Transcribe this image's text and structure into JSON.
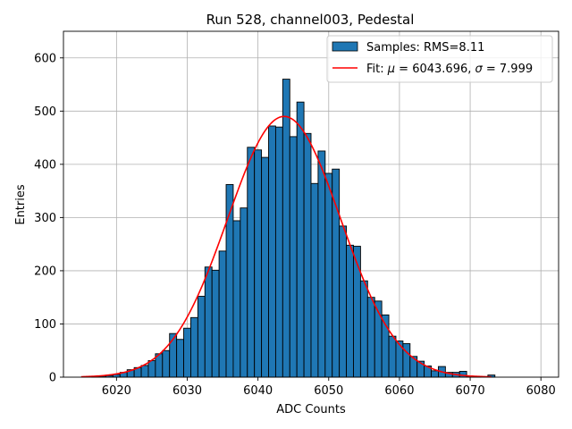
{
  "chart_data": {
    "type": "bar",
    "title": "Run 528, channel003, Pedestal",
    "xlabel": "ADC Counts",
    "ylabel": "Entries",
    "xlim": [
      6012.5,
      6082.5
    ],
    "ylim": [
      0,
      650
    ],
    "grid": true,
    "legend_position": "top-right",
    "xticks": [
      6020,
      6030,
      6040,
      6050,
      6060,
      6070,
      6080
    ],
    "yticks": [
      0,
      100,
      200,
      300,
      400,
      500,
      600
    ],
    "bin_width": 1,
    "bar_color": "#1f77b4",
    "fit_color": "#ff0000",
    "histogram": {
      "name": "Samples: RMS=8.11",
      "bins": [
        {
          "x": 6017,
          "y": 1
        },
        {
          "x": 6018,
          "y": 2
        },
        {
          "x": 6019,
          "y": 3
        },
        {
          "x": 6020,
          "y": 5
        },
        {
          "x": 6021,
          "y": 9
        },
        {
          "x": 6022,
          "y": 14
        },
        {
          "x": 6023,
          "y": 18
        },
        {
          "x": 6024,
          "y": 22
        },
        {
          "x": 6025,
          "y": 31
        },
        {
          "x": 6026,
          "y": 44
        },
        {
          "x": 6027,
          "y": 50
        },
        {
          "x": 6028,
          "y": 82
        },
        {
          "x": 6029,
          "y": 71
        },
        {
          "x": 6030,
          "y": 92
        },
        {
          "x": 6031,
          "y": 112
        },
        {
          "x": 6032,
          "y": 152
        },
        {
          "x": 6033,
          "y": 207
        },
        {
          "x": 6034,
          "y": 201
        },
        {
          "x": 6035,
          "y": 237
        },
        {
          "x": 6036,
          "y": 362
        },
        {
          "x": 6037,
          "y": 294
        },
        {
          "x": 6038,
          "y": 318
        },
        {
          "x": 6039,
          "y": 432
        },
        {
          "x": 6040,
          "y": 427
        },
        {
          "x": 6041,
          "y": 413
        },
        {
          "x": 6042,
          "y": 472
        },
        {
          "x": 6043,
          "y": 470
        },
        {
          "x": 6044,
          "y": 560
        },
        {
          "x": 6045,
          "y": 452
        },
        {
          "x": 6046,
          "y": 517
        },
        {
          "x": 6047,
          "y": 458
        },
        {
          "x": 6048,
          "y": 364
        },
        {
          "x": 6049,
          "y": 425
        },
        {
          "x": 6050,
          "y": 383
        },
        {
          "x": 6051,
          "y": 391
        },
        {
          "x": 6052,
          "y": 284
        },
        {
          "x": 6053,
          "y": 248
        },
        {
          "x": 6054,
          "y": 246
        },
        {
          "x": 6055,
          "y": 181
        },
        {
          "x": 6056,
          "y": 150
        },
        {
          "x": 6057,
          "y": 143
        },
        {
          "x": 6058,
          "y": 117
        },
        {
          "x": 6059,
          "y": 77
        },
        {
          "x": 6060,
          "y": 68
        },
        {
          "x": 6061,
          "y": 63
        },
        {
          "x": 6062,
          "y": 39
        },
        {
          "x": 6063,
          "y": 30
        },
        {
          "x": 6064,
          "y": 21
        },
        {
          "x": 6065,
          "y": 12
        },
        {
          "x": 6066,
          "y": 20
        },
        {
          "x": 6067,
          "y": 9
        },
        {
          "x": 6068,
          "y": 9
        },
        {
          "x": 6069,
          "y": 11
        },
        {
          "x": 6070,
          "y": 1
        },
        {
          "x": 6071,
          "y": 1
        },
        {
          "x": 6072,
          "y": 0
        },
        {
          "x": 6073,
          "y": 4
        }
      ]
    },
    "fit": {
      "name_prefix": "Fit: ",
      "mu_symbol": "μ",
      "mu_text": " = 6043.696, ",
      "sigma_symbol": "σ",
      "sigma_text": " = 7.999",
      "mu": 6043.696,
      "sigma": 7.999,
      "amplitude": 490,
      "x_range": [
        6015,
        6073
      ]
    }
  }
}
